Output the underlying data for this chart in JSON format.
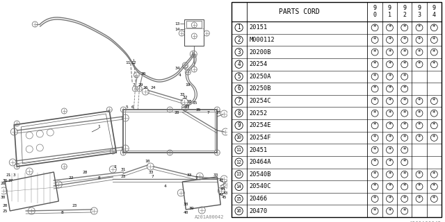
{
  "bg_color": "#ffffff",
  "header": "PARTS CORD",
  "col_headers": [
    "9\n0",
    "9\n1",
    "9\n2",
    "9\n3",
    "9\n4"
  ],
  "rows": [
    {
      "num": 1,
      "part": "20151",
      "marks": [
        true,
        true,
        true,
        true,
        true
      ]
    },
    {
      "num": 2,
      "part": "M000112",
      "marks": [
        true,
        true,
        true,
        true,
        true
      ]
    },
    {
      "num": 3,
      "part": "20200B",
      "marks": [
        true,
        true,
        true,
        true,
        true
      ]
    },
    {
      "num": 4,
      "part": "20254",
      "marks": [
        true,
        true,
        true,
        true,
        true
      ]
    },
    {
      "num": 5,
      "part": "20250A",
      "marks": [
        true,
        true,
        true,
        false,
        false
      ]
    },
    {
      "num": 6,
      "part": "20250B",
      "marks": [
        true,
        true,
        true,
        false,
        false
      ]
    },
    {
      "num": 7,
      "part": "20254C",
      "marks": [
        true,
        true,
        true,
        true,
        true
      ]
    },
    {
      "num": 8,
      "part": "20252",
      "marks": [
        true,
        true,
        true,
        true,
        true
      ]
    },
    {
      "num": 9,
      "part": "20254E",
      "marks": [
        true,
        true,
        true,
        true,
        true
      ]
    },
    {
      "num": 10,
      "part": "20254F",
      "marks": [
        true,
        true,
        true,
        true,
        true
      ]
    },
    {
      "num": 11,
      "part": "20451",
      "marks": [
        true,
        true,
        true,
        false,
        false
      ]
    },
    {
      "num": 12,
      "part": "20464A",
      "marks": [
        true,
        true,
        true,
        false,
        false
      ]
    },
    {
      "num": 13,
      "part": "20540B",
      "marks": [
        true,
        true,
        true,
        true,
        true
      ]
    },
    {
      "num": 14,
      "part": "20540C",
      "marks": [
        true,
        true,
        true,
        true,
        true
      ]
    },
    {
      "num": 15,
      "part": "20466",
      "marks": [
        true,
        true,
        true,
        true,
        true
      ]
    },
    {
      "num": 16,
      "part": "20470",
      "marks": [
        true,
        true,
        true,
        false,
        false
      ]
    }
  ],
  "footer": "A201A00042",
  "lc": "#777777",
  "lc_dark": "#444444"
}
